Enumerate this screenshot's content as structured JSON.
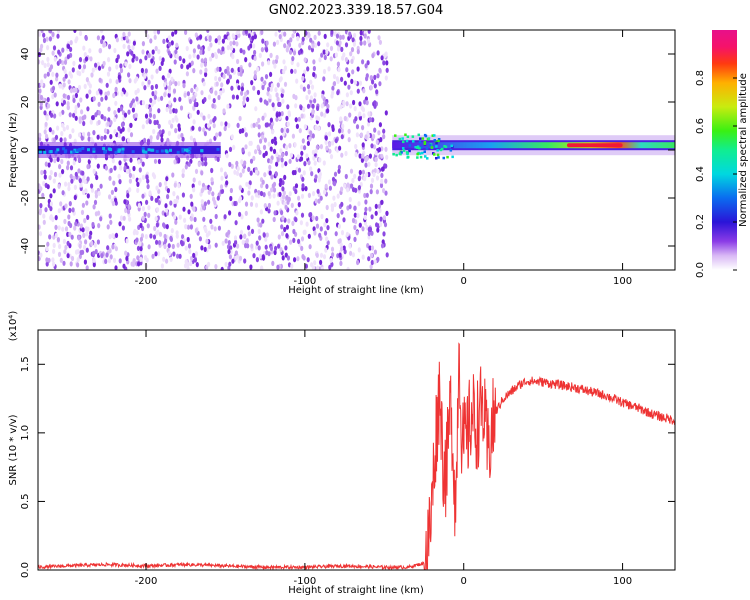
{
  "title": "GN02.2023.339.18.57.G04",
  "chart_data": [
    {
      "type": "heatmap",
      "xlabel": "Height of straight line (km)",
      "ylabel": "Frequency (Hz)",
      "xlim": [
        -268,
        133
      ],
      "ylim": [
        -50,
        50
      ],
      "x_ticks": [
        -200,
        -100,
        0,
        100
      ],
      "x_tick_labels": [
        "-200",
        "-100",
        "0",
        "100"
      ],
      "y_ticks": [
        -40,
        -20,
        0,
        20,
        40
      ],
      "y_tick_labels": [
        "-40",
        "-20",
        "0",
        "20",
        "40"
      ],
      "colorbar": {
        "label": "Normalized spectral amplitude",
        "range": [
          0,
          1
        ],
        "ticks": [
          0.0,
          0.2,
          0.4,
          0.6,
          0.8
        ],
        "tick_labels": [
          "0.0",
          "0.2",
          "0.4",
          "0.6",
          "0.8"
        ],
        "colormap": "gist_ncar-like (white → purple → blue → cyan → green → yellow → red → magenta)"
      },
      "features": [
        {
          "label": "noise",
          "x_range": [
            -268,
            -48
          ],
          "freq_range": [
            -50,
            50
          ],
          "amplitude": "low"
        },
        {
          "label": "weak band",
          "x_range": [
            -268,
            -153
          ],
          "freq_center": 0,
          "amplitude": 0.2
        },
        {
          "label": "strong band",
          "x_range": [
            -45,
            133
          ],
          "freq_center": 2,
          "amplitude": "0.3–1.0",
          "peak_x": [
            65,
            100
          ]
        }
      ]
    },
    {
      "type": "line",
      "xlabel": "Height of straight line (km)",
      "ylabel": "SNR (10 * v/v)",
      "y_scale_label": "(x10⁴)",
      "xlim": [
        -268,
        133
      ],
      "ylim": [
        0,
        1.75
      ],
      "x_ticks": [
        -200,
        -100,
        0,
        100
      ],
      "x_tick_labels": [
        "-200",
        "-100",
        "0",
        "100"
      ],
      "y_ticks": [
        0.0,
        0.5,
        1.0,
        1.5
      ],
      "y_tick_labels": [
        "0.0",
        "0.5",
        "1.0",
        "1.5"
      ],
      "color": "#ee3333",
      "series": [
        {
          "x": [
            -268,
            -250,
            -225,
            -200,
            -175,
            -150,
            -125,
            -100,
            -75,
            -50,
            -35,
            -25,
            -21,
            -18,
            -15,
            -13,
            -11,
            -8,
            -5,
            -3,
            -1,
            2,
            5,
            8,
            12,
            15,
            20,
            25,
            30,
            35,
            40,
            50,
            60,
            70,
            80,
            90,
            100,
            110,
            120,
            133
          ],
          "y": [
            0.02,
            0.03,
            0.04,
            0.03,
            0.04,
            0.03,
            0.02,
            0.02,
            0.03,
            0.02,
            0.02,
            0.05,
            0.3,
            0.9,
            1.35,
            0.8,
            0.7,
            1.25,
            0.4,
            1.7,
            0.9,
            0.95,
            1.15,
            1.05,
            1.2,
            0.85,
            1.15,
            1.25,
            1.3,
            1.35,
            1.38,
            1.37,
            1.35,
            1.33,
            1.3,
            1.27,
            1.22,
            1.18,
            1.13,
            1.09
          ]
        }
      ]
    }
  ]
}
